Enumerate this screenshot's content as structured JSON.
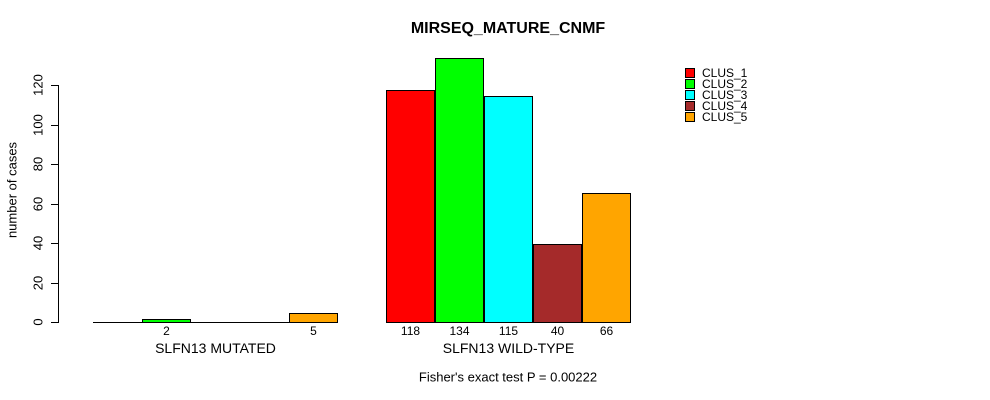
{
  "figure_background": "#ffffff",
  "chart_data": {
    "type": "bar",
    "title": "MIRSEQ_MATURE_CNMF",
    "ylabel": "number of cases",
    "xlabel": "",
    "annotation": "Fisher's exact test P = 0.00222",
    "categories": [
      "SLFN13 MUTATED",
      "SLFN13 WILD-TYPE"
    ],
    "series": [
      {
        "name": "CLUS_1",
        "color": "#ff0000",
        "values": [
          0,
          118
        ]
      },
      {
        "name": "CLUS_2",
        "color": "#00ff00",
        "values": [
          2,
          134
        ]
      },
      {
        "name": "CLUS_3",
        "color": "#00ffff",
        "values": [
          0,
          115
        ]
      },
      {
        "name": "CLUS_4",
        "color": "#a52a2a",
        "values": [
          0,
          40
        ]
      },
      {
        "name": "CLUS_5",
        "color": "#ffa500",
        "values": [
          5,
          66
        ]
      }
    ],
    "yticks": [
      0,
      20,
      40,
      60,
      80,
      100,
      120
    ],
    "ylim": [
      0,
      140
    ],
    "grid": false,
    "legend_position": "top-right",
    "bar_value_labels": "shown below each non-zero bar",
    "axis_color": "#000000",
    "bar_border_color": "#000000"
  }
}
